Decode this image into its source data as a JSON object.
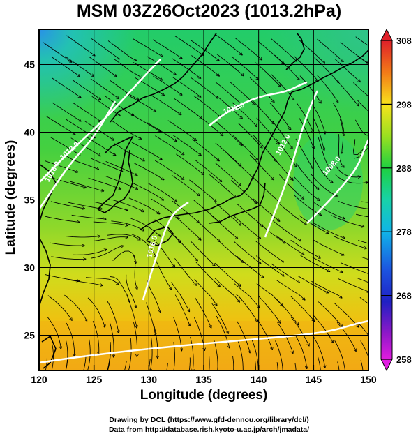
{
  "title": "MSM 03Z26Oct2023 (1013.2hPa)",
  "axes": {
    "xlabel": "Longitude (degrees)",
    "ylabel": "Latitude  (degrees)",
    "xticks": [
      "120",
      "125",
      "130",
      "135",
      "140",
      "145",
      "150"
    ],
    "yticks": [
      "25",
      "30",
      "35",
      "40",
      "45"
    ],
    "xlim": [
      120,
      150
    ],
    "ylim": [
      22.4,
      47.6
    ]
  },
  "colorbar": {
    "ticks": [
      "258",
      "268",
      "278",
      "288",
      "298",
      "308"
    ],
    "range": [
      258,
      308
    ]
  },
  "isobars": [
    {
      "label": "1012.0",
      "lat": 38.5,
      "lon": 122.9
    },
    {
      "label": "1016.0",
      "lat": 37.0,
      "lon": 121.4
    },
    {
      "label": "1016.0",
      "lat": 31.5,
      "lon": 130.5
    },
    {
      "label": "1012.0",
      "lat": 39.0,
      "lon": 142.4
    },
    {
      "label": "1008.0",
      "lat": 37.4,
      "lon": 146.8
    },
    {
      "label": "1012.0",
      "lat": 41.6,
      "lon": 137.8
    }
  ],
  "footer": {
    "line1": "Drawing by DCL (https://www.gfd-dennou.org/library/dcl/)",
    "line2": "Data from http://database.rish.kyoto-u.ac.jp/arch/jmadata/"
  }
}
